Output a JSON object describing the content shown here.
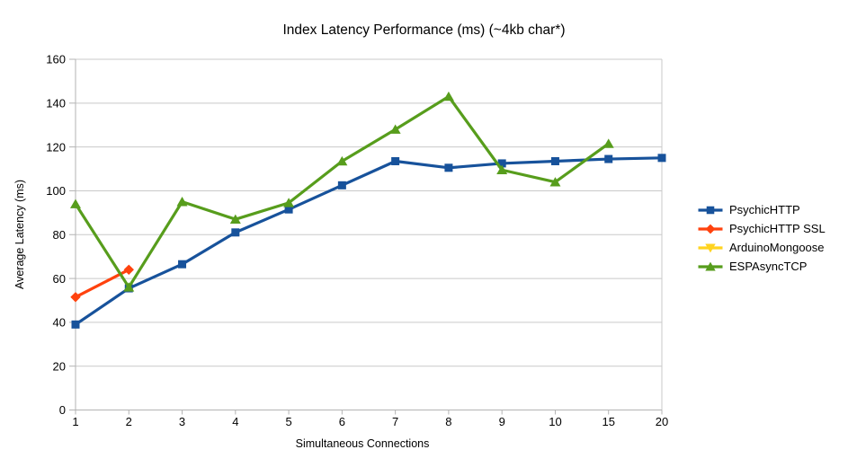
{
  "chart_data": {
    "type": "line",
    "title": "Index Latency Performance (ms) (~4kb char*)",
    "xlabel": "Simultaneous Connections",
    "ylabel": "Average Latency (ms)",
    "categories": [
      "1",
      "2",
      "3",
      "4",
      "5",
      "6",
      "7",
      "8",
      "9",
      "10",
      "15",
      "20"
    ],
    "ylim": [
      0,
      160
    ],
    "yticks": [
      0,
      20,
      40,
      60,
      80,
      100,
      120,
      140,
      160
    ],
    "grid": "horizontal",
    "legend_position": "right",
    "series": [
      {
        "name": "PsychicHTTP",
        "color": "#17529b",
        "marker": "square",
        "values": [
          39,
          55.5,
          66.5,
          81,
          91.5,
          102.5,
          113.5,
          110.5,
          112.5,
          113.5,
          114.5,
          115
        ]
      },
      {
        "name": "PsychicHTTP SSL",
        "color": "#ff420e",
        "marker": "diamond",
        "values": [
          51.5,
          64,
          null,
          null,
          null,
          null,
          null,
          null,
          null,
          null,
          null,
          null
        ]
      },
      {
        "name": "ArduinoMongoose",
        "color": "#ffd320",
        "marker": "triangle-down",
        "values": [
          null,
          null,
          null,
          null,
          null,
          null,
          null,
          null,
          null,
          null,
          null,
          null
        ]
      },
      {
        "name": "ESPAsyncTCP",
        "color": "#579d1c",
        "marker": "triangle-up",
        "values": [
          94,
          56,
          95,
          87,
          94.5,
          113.5,
          128,
          143,
          109.5,
          104,
          121.5,
          null
        ]
      }
    ]
  },
  "colors": {
    "background": "#ffffff",
    "gridline": "#c9c9c9",
    "axis": "#b3b3b3",
    "text": "#000000"
  }
}
